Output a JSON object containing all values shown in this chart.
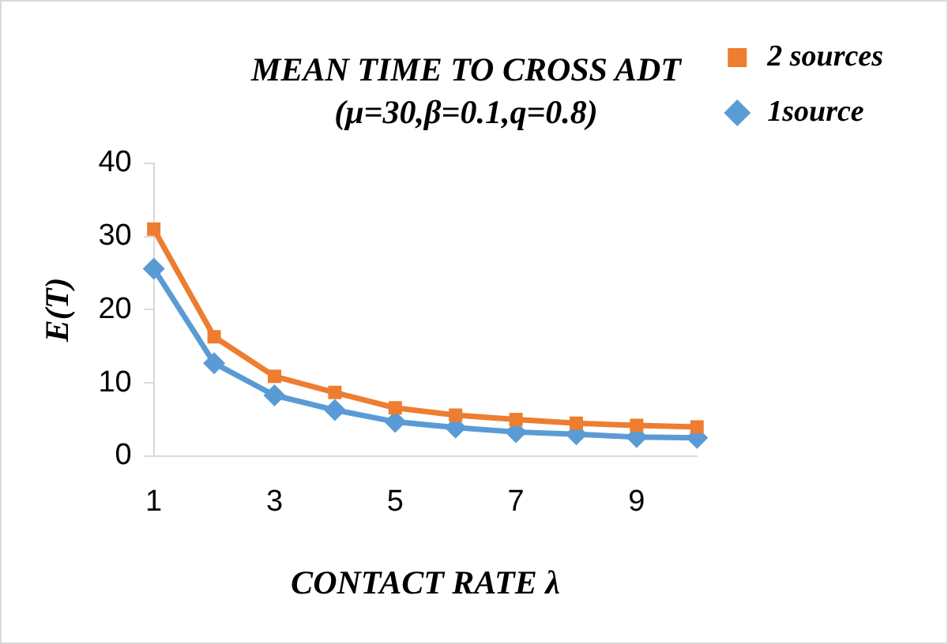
{
  "chart_data": {
    "type": "line",
    "title": "MEAN TIME TO CROSS ADT",
    "subtitle": "(μ=30,β=0.1,q=0.8)",
    "xlabel": "CONTACT RATE λ",
    "ylabel": "E(T)",
    "categories": [
      "1",
      null,
      "3",
      null,
      "5",
      null,
      "7",
      null,
      "9",
      null
    ],
    "series": [
      {
        "name": "2 sources",
        "color": "#ed7d31",
        "marker": "square",
        "values": [
          31,
          16.3,
          10.9,
          8.7,
          6.6,
          5.6,
          5.0,
          4.5,
          4.2,
          4.0
        ]
      },
      {
        "name": "1source",
        "color": "#5b9bd5",
        "marker": "diamond",
        "values": [
          25.6,
          12.7,
          8.3,
          6.3,
          4.7,
          3.9,
          3.3,
          3.0,
          2.6,
          2.5
        ]
      }
    ],
    "ylim": [
      0,
      40
    ],
    "yticks": [
      0,
      10,
      20,
      30,
      40
    ],
    "grid": false,
    "legend": "right"
  }
}
